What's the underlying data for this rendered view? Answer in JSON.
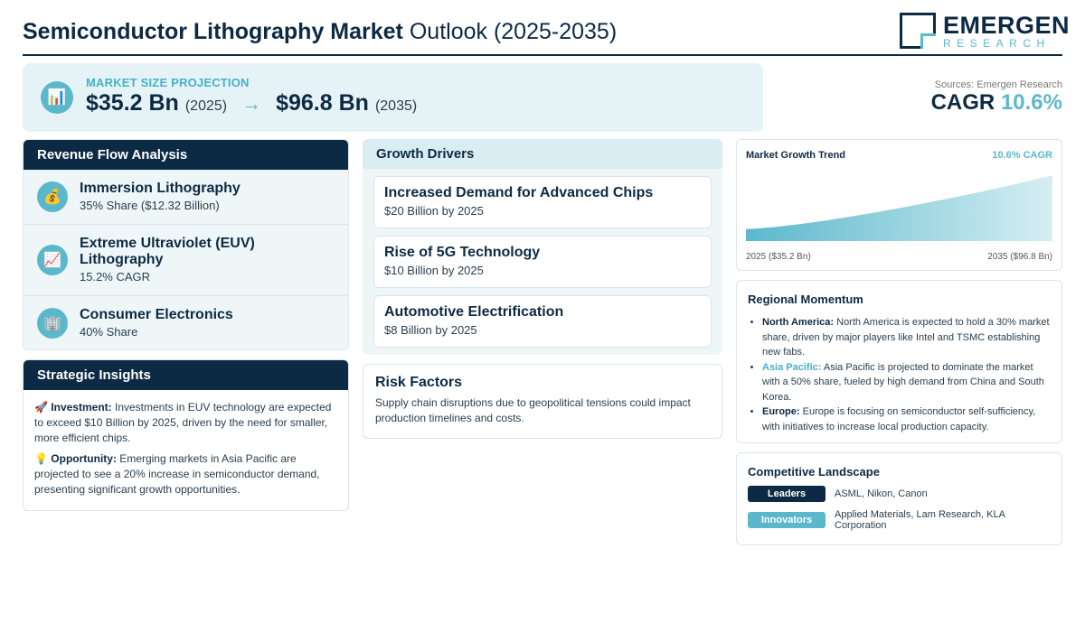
{
  "header": {
    "title_bold": "Semiconductor Lithography Market",
    "title_light": "Outlook (2025-2035)",
    "logo_main": "EMERGEN",
    "logo_sub": "RESEARCH"
  },
  "projection": {
    "label": "MARKET SIZE PROJECTION",
    "icon": "bar-chart-icon",
    "start_value": "$35.2 Bn",
    "start_year": "(2025)",
    "arrow": "→",
    "end_value": "$96.8 Bn",
    "end_year": "(2035)"
  },
  "sources": "Sources: Emergen Research",
  "cagr": {
    "label": "CAGR",
    "value": "10.6%"
  },
  "revenue_flow": {
    "title": "Revenue Flow Analysis",
    "items": [
      {
        "icon": "money-bag-icon",
        "glyph": "💰",
        "title": "Immersion Lithography",
        "sub": "35% Share ($12.32 Billion)"
      },
      {
        "icon": "trend-up-icon",
        "glyph": "📈",
        "title": "Extreme Ultraviolet (EUV) Lithography",
        "sub": "15.2% CAGR"
      },
      {
        "icon": "building-icon",
        "glyph": "🏢",
        "title": "Consumer Electronics",
        "sub": "40% Share"
      }
    ]
  },
  "strategic": {
    "title": "Strategic Insights",
    "items": [
      {
        "icon": "rocket-icon",
        "glyph": "🚀",
        "label": "Investment:",
        "text": "Investments in EUV technology are expected to exceed $10 Billion by 2025, driven by the need for smaller, more efficient chips."
      },
      {
        "icon": "lightbulb-icon",
        "glyph": "💡",
        "label": "Opportunity:",
        "text": "Emerging markets in Asia Pacific are projected to see a 20% increase in semiconductor demand, presenting significant growth opportunities."
      }
    ]
  },
  "drivers": {
    "title": "Growth Drivers",
    "items": [
      {
        "title": "Increased Demand for Advanced Chips",
        "sub": "$20 Billion by 2025"
      },
      {
        "title": "Rise of 5G Technology",
        "sub": "$10 Billion by 2025"
      },
      {
        "title": "Automotive Electrification",
        "sub": "$8 Billion by 2025"
      }
    ]
  },
  "risk": {
    "title": "Risk Factors",
    "text": "Supply chain disruptions due to geopolitical tensions could impact production timelines and costs."
  },
  "trend": {
    "title": "Market Growth Trend",
    "cagr_label": "10.6% CAGR",
    "start_label": "2025 ($35.2 Bn)",
    "end_label": "2035 ($96.8 Bn)",
    "fill_color": "#5bb8cc"
  },
  "chart_data": {
    "type": "area",
    "x": [
      2025,
      2035
    ],
    "values": [
      35.2,
      96.8
    ],
    "title": "Market Growth Trend"
  },
  "regional": {
    "title": "Regional Momentum",
    "items": [
      {
        "label": "North America:",
        "accent": false,
        "text": "North America is expected to hold a 30% market share, driven by major players like Intel and TSMC establishing new fabs."
      },
      {
        "label": "Asia Pacific:",
        "accent": true,
        "text": "Asia Pacific is projected to dominate the market with a 50% share, fueled by high demand from China and South Korea."
      },
      {
        "label": "Europe:",
        "accent": false,
        "text": "Europe is focusing on semiconductor self-sufficiency, with initiatives to increase local production capacity."
      }
    ]
  },
  "competitive": {
    "title": "Competitive Landscape",
    "rows": [
      {
        "tag": "Leaders",
        "text": "ASML, Nikon, Canon"
      },
      {
        "tag": "Innovators",
        "text": "Applied Materials, Lam Research, KLA Corporation"
      }
    ]
  },
  "colors": {
    "navy": "#0d2a44",
    "accent": "#5bb8cc",
    "panel": "#eef6f8"
  }
}
